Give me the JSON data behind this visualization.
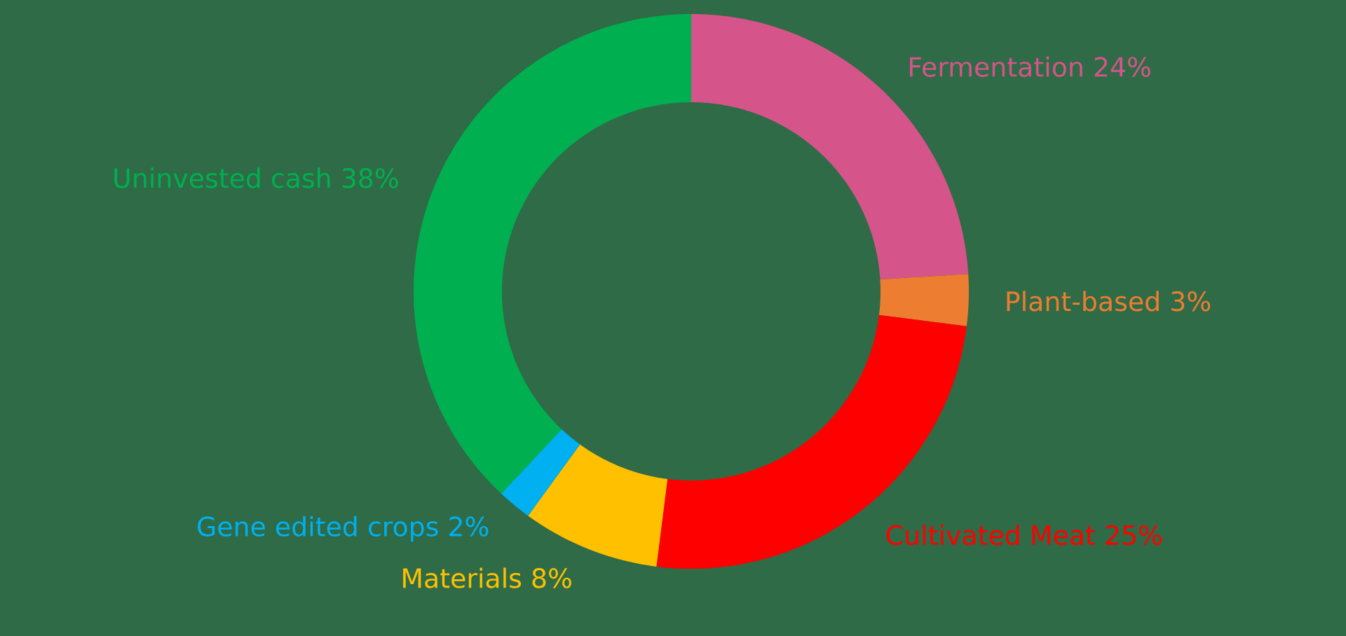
{
  "chart_data": {
    "type": "donut",
    "categories": [
      "Fermentation",
      "Plant-based",
      "Cultivated Meat",
      "Materials",
      "Gene edited crops",
      "Uninvested cash"
    ],
    "values": [
      24,
      3,
      25,
      8,
      2,
      38
    ],
    "value_labels": [
      "24%",
      "3%",
      "25%",
      "8%",
      "2%",
      "38%"
    ],
    "colors": [
      "#d5558a",
      "#ed7d31",
      "#ff0000",
      "#ffc000",
      "#00b0f0",
      "#00b050"
    ]
  }
}
